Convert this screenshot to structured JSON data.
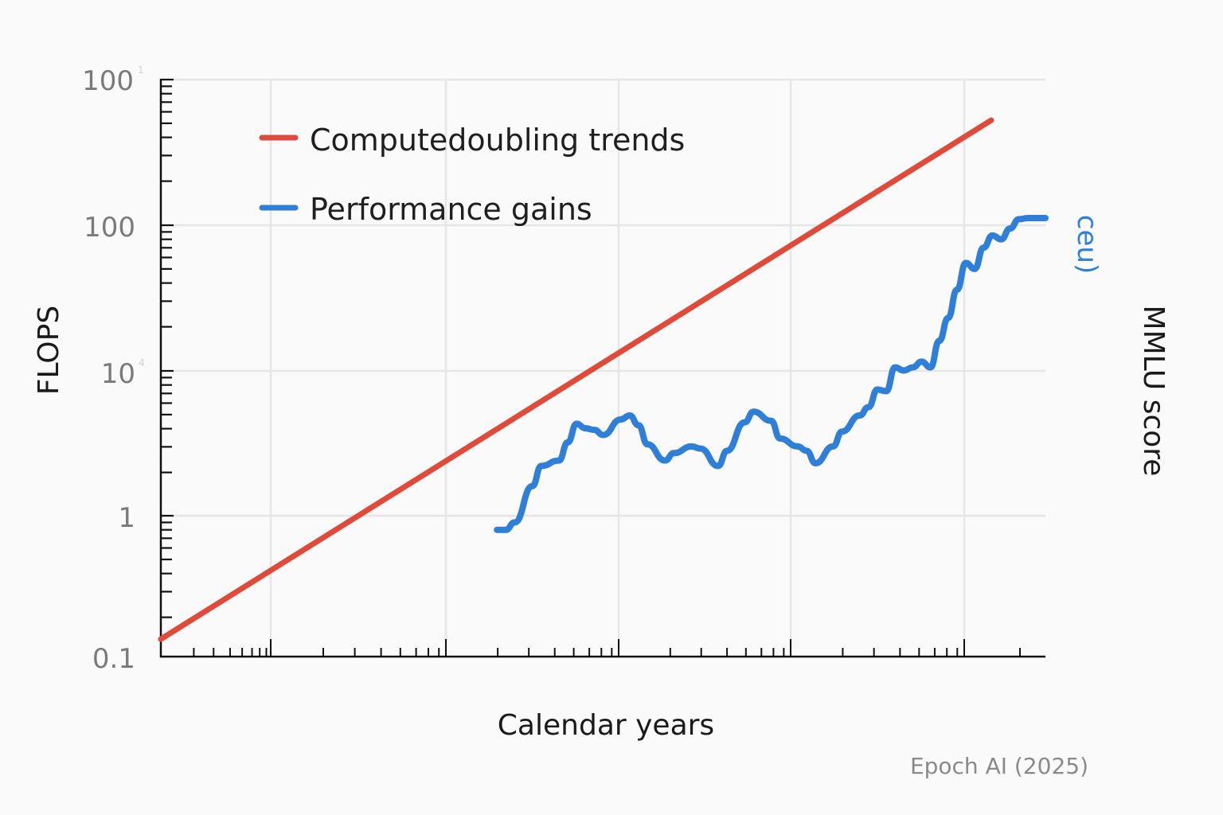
{
  "chart_data": {
    "type": "line",
    "title": "",
    "xlabel": "Calendar years",
    "ylabel": "FLOPS",
    "ylabel_right": "MMLU score",
    "ylabel_right_partial": "ceu)",
    "yscale": "log",
    "y_tick_labels": [
      "100",
      "100",
      "10",
      "1",
      "0.1"
    ],
    "y_tick_superscripts": [
      "1",
      "",
      "4",
      "",
      ""
    ],
    "x_tick_labels": [],
    "grid": true,
    "legend_position": "upper left",
    "legend": [
      {
        "label": "Computedoubling trends",
        "color": "#e04a3a"
      },
      {
        "label": "Performance gains",
        "color": "#2f7fd8"
      }
    ],
    "series": [
      {
        "name": "Computedoubling trends",
        "color": "#e04a3a",
        "x_frac": [
          0.0,
          0.94
        ],
        "y_decades_from_bottom": [
          0.12,
          3.7
        ],
        "description": "straight line on log scale rising from ~0.13 at the left edge to above the 100 gridline near the right"
      },
      {
        "name": "Performance gains",
        "color": "#2f7fd8",
        "x_frac": [
          0.38,
          0.39,
          0.4,
          0.42,
          0.43,
          0.45,
          0.46,
          0.47,
          0.48,
          0.49,
          0.5,
          0.52,
          0.53,
          0.54,
          0.55,
          0.57,
          0.58,
          0.6,
          0.61,
          0.63,
          0.64,
          0.66,
          0.67,
          0.69,
          0.7,
          0.72,
          0.73,
          0.74,
          0.76,
          0.77,
          0.79,
          0.8,
          0.81,
          0.82,
          0.83,
          0.84,
          0.85,
          0.86,
          0.87,
          0.88,
          0.89,
          0.9,
          0.91,
          0.92,
          0.93,
          0.94,
          0.95,
          0.96,
          0.97,
          0.98,
          0.99,
          1.0
        ],
        "y_approx": [
          0.8,
          0.8,
          0.9,
          1.6,
          2.2,
          2.4,
          3.2,
          4.3,
          4.0,
          3.9,
          3.6,
          4.6,
          4.9,
          4.2,
          3.1,
          2.4,
          2.7,
          3.0,
          2.9,
          2.2,
          2.8,
          4.4,
          5.2,
          4.5,
          3.4,
          3.0,
          2.8,
          2.3,
          3.0,
          3.8,
          4.9,
          5.6,
          7.4,
          7.2,
          10.5,
          10.0,
          10.5,
          11.5,
          10.5,
          16,
          23,
          36,
          55,
          50,
          70,
          85,
          80,
          95,
          110,
          112,
          112,
          112
        ],
        "description": "starts near 1 around x=0.38, plateaus at ~2-5 between 0.45 and 0.73, then climbs steadily to ~110 at the right edge"
      }
    ]
  },
  "axes": {
    "y_labels": [
      {
        "text": "100",
        "sup": "1"
      },
      {
        "text": "100",
        "sup": ""
      },
      {
        "text": "10",
        "sup": "4"
      },
      {
        "text": "1",
        "sup": ""
      },
      {
        "text": "0.1",
        "sup": ""
      }
    ],
    "y_title": "FLOPS",
    "x_title": "Calendar years",
    "right_partial_label": "ceu)",
    "right_title": "MMLU score"
  },
  "legend": {
    "items": [
      {
        "label": "Computedoubling trends",
        "color": "#e04a3a"
      },
      {
        "label": "Performance gains",
        "color": "#2f7fd8"
      }
    ]
  },
  "credit": "Epoch AI (2025)",
  "colors": {
    "background": "#fafafa",
    "grid": "#e6e6e6",
    "axis": "#111111",
    "red": "#e04a3a",
    "blue": "#2f7fd8"
  }
}
